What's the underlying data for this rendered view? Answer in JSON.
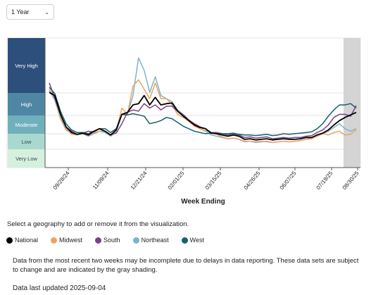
{
  "range_select": {
    "value": "1 Year"
  },
  "select_note": "Select a geography to add or remove it from the visualization.",
  "legend_items": [
    {
      "name": "National",
      "color": "#000000"
    },
    {
      "name": "Midwest",
      "color": "#f0a35e"
    },
    {
      "name": "South",
      "color": "#7b3f8c"
    },
    {
      "name": "Northeast",
      "color": "#7fb2c9"
    },
    {
      "name": "West",
      "color": "#14616e"
    }
  ],
  "note": "Data from the most recent two weeks may be incomplete due to delays in data reporting. These data sets are subject to change and are indicated by the gray shading.",
  "updated": "Data last updated 2025-09-04",
  "chart_data": {
    "type": "line",
    "xlabel": "Week Ending",
    "ylabel": "",
    "x_tick_labels": [
      "09/28/24",
      "11/09/24",
      "12/21/24",
      "02/01/25",
      "03/15/25",
      "04/26/25",
      "06/07/25",
      "07/19/25",
      "08/30/25"
    ],
    "levels": [
      {
        "label": "Very High",
        "color": "#2c4f7c"
      },
      {
        "label": "High",
        "color": "#4f86a4"
      },
      {
        "label": "Moderate",
        "color": "#6fb0bc"
      },
      {
        "label": "Low",
        "color": "#a9d8cf"
      },
      {
        "label": "Very Low",
        "color": "#d5f0dd"
      }
    ],
    "shaded_region": "most recent two weeks",
    "series": [
      {
        "name": "National",
        "color": "#000000",
        "values": [
          12,
          11.5,
          8.5,
          6.5,
          5.6,
          5.3,
          5.5,
          5.2,
          5.8,
          6.2,
          5.8,
          5.2,
          6,
          8.5,
          8.8,
          10,
          10.2,
          11.5,
          10,
          11.2,
          10,
          10.2,
          10.3,
          9,
          8.2,
          7.5,
          6.8,
          6.4,
          6.2,
          5.5,
          5.4,
          5.2,
          5,
          5.2,
          5,
          4.5,
          4.6,
          4.4,
          4.5,
          4.6,
          4.4,
          4.5,
          4.6,
          4.5,
          4.5,
          4.6,
          4.8,
          4.8,
          5.2,
          5.5,
          6,
          6.8,
          7.5,
          8,
          8.4,
          8.8
        ]
      },
      {
        "name": "Midwest",
        "color": "#f0a35e",
        "values": [
          12.5,
          11,
          8,
          6.2,
          5.3,
          5.2,
          5.4,
          5.1,
          5.6,
          5.8,
          5.8,
          5.1,
          5.8,
          9.5,
          8.5,
          13,
          14,
          12.5,
          11,
          13.5,
          11,
          11,
          10,
          8.5,
          8,
          7.4,
          6.6,
          6.2,
          5.9,
          5.6,
          5.3,
          4.9,
          4.6,
          4.7,
          4.5,
          4.2,
          4.2,
          4.1,
          4.2,
          4.1,
          4.0,
          4.1,
          4.2,
          4.1,
          4.2,
          4.3,
          4.5,
          4.6,
          5,
          5.4,
          5.2,
          5.6,
          5.8,
          5.2,
          5.3,
          6
        ]
      },
      {
        "name": "South",
        "color": "#7b3f8c",
        "values": [
          13.5,
          11,
          8.5,
          6.5,
          5.8,
          5.3,
          5.5,
          5.8,
          5.7,
          6.2,
          5.8,
          5.2,
          5.5,
          7,
          8.8,
          9.2,
          9,
          10.2,
          9.5,
          10,
          9.2,
          9.8,
          9.8,
          9,
          8.4,
          7.6,
          7,
          6.5,
          6.2,
          5.6,
          5.6,
          5.4,
          5.2,
          5.4,
          5.2,
          4.8,
          4.9,
          4.7,
          4.8,
          4.9,
          4.6,
          4.7,
          4.8,
          4.7,
          4.8,
          4.8,
          5,
          5.1,
          5.6,
          6,
          6.8,
          8,
          8.5,
          8.5,
          8.2,
          9.9
        ]
      },
      {
        "name": "Northeast",
        "color": "#7fb2c9",
        "values": [
          12.2,
          10.8,
          7.8,
          6,
          5.5,
          5.2,
          5.4,
          5,
          5.4,
          5.8,
          5.6,
          5,
          5.8,
          8.5,
          8.5,
          11.5,
          17.5,
          15.5,
          12,
          14.5,
          11.5,
          11,
          10.5,
          9.2,
          8.5,
          7.6,
          6.8,
          6.2,
          5.8,
          5.2,
          5.0,
          4.8,
          4.6,
          4.7,
          4.5,
          4.1,
          4.2,
          4.0,
          4.1,
          4.2,
          4.0,
          4.1,
          4.2,
          4.1,
          4.2,
          4.3,
          4.5,
          4.8,
          5,
          5.4,
          5.8,
          6.4,
          7,
          6.2,
          5.8,
          6.2
        ]
      },
      {
        "name": "West",
        "color": "#14616e",
        "values": [
          12.8,
          11.8,
          9,
          7,
          6,
          5.6,
          5.6,
          5.4,
          5.8,
          6.2,
          6.2,
          5.6,
          6.2,
          8.5,
          8.4,
          8.6,
          8.4,
          8.2,
          7,
          7.2,
          7.5,
          8,
          7.8,
          7.2,
          6.6,
          6.2,
          5.8,
          5.6,
          5.4,
          5.5,
          5.4,
          5.4,
          5.4,
          5.5,
          5.3,
          5.2,
          5.2,
          5.1,
          5.2,
          5.3,
          5.1,
          5.2,
          5.4,
          5.3,
          5.4,
          5.5,
          5.6,
          5.7,
          6.2,
          7,
          8.2,
          9.2,
          10,
          10,
          10.2,
          9.5
        ]
      }
    ]
  }
}
